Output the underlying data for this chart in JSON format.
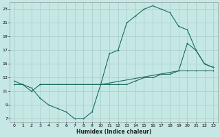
{
  "xlabel": "Humidex (Indice chaleur)",
  "bg_color": "#c5e8e5",
  "grid_color": "#aacfcc",
  "line_color": "#1a6b60",
  "line1_x": [
    0,
    1,
    2,
    3,
    4,
    5,
    6,
    7,
    8,
    9,
    10,
    11,
    12,
    13,
    14,
    15,
    16,
    17,
    18,
    19,
    20,
    21,
    22,
    23
  ],
  "line1_y": [
    12.0,
    12.0,
    11.5,
    10.0,
    9.0,
    8.5,
    8.0,
    7.0,
    7.0,
    8.0,
    12.0,
    12.0,
    12.0,
    12.0,
    12.5,
    13.0,
    13.0,
    13.5,
    13.5,
    14.0,
    14.0,
    14.0,
    14.0,
    14.0
  ],
  "line2_x": [
    0,
    1,
    2,
    3,
    10,
    11,
    12,
    13,
    14,
    15,
    16,
    17,
    18,
    19,
    20,
    21,
    22,
    23
  ],
  "line2_y": [
    12.5,
    12.0,
    11.0,
    12.0,
    12.0,
    16.5,
    17.0,
    21.0,
    22.0,
    23.0,
    23.5,
    23.0,
    22.5,
    20.5,
    20.0,
    17.0,
    15.0,
    14.5
  ],
  "line3_x": [
    3,
    10,
    19,
    20,
    21,
    22,
    23
  ],
  "line3_y": [
    12.0,
    12.0,
    14.0,
    18.0,
    17.0,
    15.0,
    14.5
  ],
  "xlim": [
    -0.5,
    23.5
  ],
  "ylim": [
    6.5,
    24.0
  ],
  "yticks": [
    7,
    9,
    11,
    13,
    15,
    17,
    19,
    21,
    23
  ],
  "xticks": [
    0,
    1,
    2,
    3,
    4,
    5,
    6,
    7,
    8,
    9,
    10,
    11,
    12,
    13,
    14,
    15,
    16,
    17,
    18,
    19,
    20,
    21,
    22,
    23
  ]
}
